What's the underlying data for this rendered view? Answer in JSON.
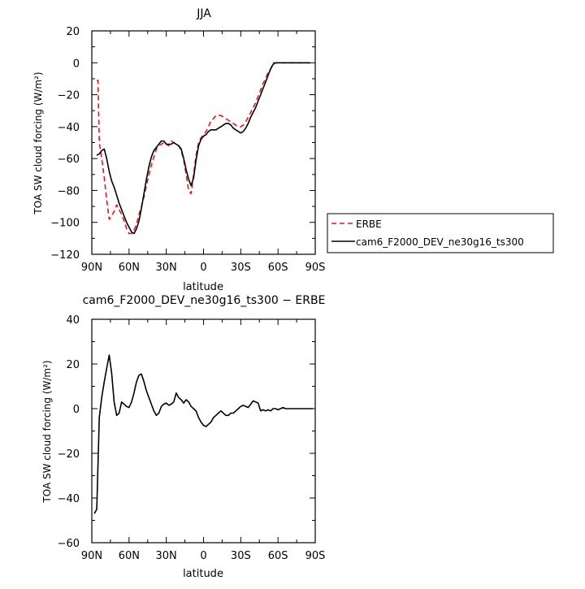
{
  "chart_data": [
    {
      "type": "line",
      "title": "JJA",
      "xlabel": "latitude",
      "ylabel": "TOA SW cloud forcing (W/m²)",
      "xlim": [
        90,
        -90
      ],
      "ylim": [
        -120,
        20
      ],
      "xticks": [
        90,
        60,
        30,
        0,
        -30,
        -60,
        -90
      ],
      "xtick_labels": [
        "90N",
        "60N",
        "30N",
        "0",
        "30S",
        "60S",
        "90S"
      ],
      "yticks": [
        -120,
        -100,
        -80,
        -60,
        -40,
        -20,
        0,
        20
      ],
      "ytick_labels": [
        "−120",
        "−100",
        "−80",
        "−60",
        "−40",
        "−20",
        "0",
        "20"
      ],
      "legend_position": "right",
      "series": [
        {
          "name": "ERBE",
          "color": "#e8131b",
          "dash": "dashed",
          "x": [
            86,
            85,
            84,
            82,
            80,
            78,
            76,
            74,
            72,
            70,
            68,
            66,
            64,
            62,
            60,
            58,
            56,
            54,
            52,
            50,
            48,
            46,
            44,
            42,
            40,
            38,
            36,
            34,
            32,
            30,
            28,
            26,
            24,
            22,
            20,
            18,
            16,
            14,
            12,
            10,
            8,
            6,
            4,
            2,
            0,
            -2,
            -4,
            -6,
            -8,
            -10,
            -12,
            -14,
            -16,
            -18,
            -20,
            -22,
            -24,
            -26,
            -28,
            -30,
            -32,
            -34,
            -36,
            -38,
            -40,
            -42,
            -44,
            -46,
            -48,
            -50,
            -52,
            -54,
            -56,
            -58,
            -60,
            -62,
            -64,
            -66,
            -68,
            -70,
            -72,
            -74,
            -76,
            -78,
            -80,
            -82,
            -84,
            -86
          ],
          "y": [
            -11,
            -11,
            -50,
            -60,
            -72,
            -86,
            -98,
            -96,
            -93,
            -89,
            -92,
            -95,
            -99,
            -104,
            -107,
            -107,
            -105,
            -101,
            -95,
            -90,
            -84,
            -77,
            -70,
            -64,
            -59,
            -54,
            -52,
            -51,
            -50,
            -51,
            -52,
            -49,
            -50,
            -51,
            -52,
            -55,
            -61,
            -70,
            -80,
            -82,
            -70,
            -58,
            -50,
            -47,
            -45,
            -43,
            -40,
            -36,
            -35,
            -33,
            -33,
            -33,
            -34,
            -35,
            -36,
            -37,
            -38,
            -39,
            -40,
            -40,
            -39,
            -37,
            -34,
            -31,
            -28,
            -25,
            -21,
            -17,
            -13,
            -10,
            -6,
            -4,
            0,
            0,
            0,
            0,
            0,
            0,
            0,
            0,
            0,
            0,
            0,
            0,
            0,
            0,
            0,
            0
          ]
        },
        {
          "name": "cam6_F2000_DEV_ne30g16_ts300",
          "color": "#000000",
          "dash": "solid",
          "x": [
            86,
            84,
            82,
            80,
            78,
            76,
            74,
            72,
            70,
            68,
            66,
            64,
            62,
            60,
            58,
            56,
            54,
            52,
            50,
            48,
            46,
            44,
            42,
            40,
            38,
            36,
            34,
            32,
            30,
            28,
            26,
            24,
            22,
            20,
            18,
            16,
            14,
            12,
            10,
            8,
            6,
            4,
            2,
            0,
            -2,
            -4,
            -6,
            -8,
            -10,
            -12,
            -14,
            -16,
            -18,
            -20,
            -22,
            -24,
            -26,
            -28,
            -30,
            -32,
            -34,
            -36,
            -38,
            -40,
            -42,
            -44,
            -46,
            -48,
            -50,
            -52,
            -54,
            -56,
            -58,
            -60,
            -62,
            -64,
            -66,
            -68,
            -70,
            -72,
            -74,
            -76,
            -78,
            -80,
            -82,
            -84,
            -86
          ],
          "y": [
            -58,
            -57,
            -55,
            -54,
            -60,
            -68,
            -74,
            -78,
            -83,
            -88,
            -92,
            -96,
            -100,
            -103,
            -106,
            -107,
            -104,
            -99,
            -91,
            -82,
            -73,
            -65,
            -59,
            -55,
            -53,
            -51,
            -49,
            -49,
            -51,
            -51,
            -51,
            -50,
            -51,
            -52,
            -54,
            -60,
            -67,
            -73,
            -77,
            -72,
            -61,
            -52,
            -48,
            -46,
            -45,
            -43,
            -42,
            -42,
            -42,
            -41,
            -40,
            -39,
            -38,
            -38,
            -39,
            -41,
            -42,
            -43,
            -44,
            -43,
            -41,
            -38,
            -34,
            -31,
            -28,
            -24,
            -20,
            -16,
            -12,
            -8,
            -4,
            -1,
            0,
            0,
            0,
            0,
            0,
            0,
            0,
            0,
            0,
            0,
            0,
            0,
            0,
            0,
            0
          ]
        }
      ]
    },
    {
      "type": "line",
      "title": "cam6_F2000_DEV_ne30g16_ts300 − ERBE",
      "xlabel": "latitude",
      "ylabel": "TOA SW cloud forcing (W/m²)",
      "xlim": [
        90,
        -90
      ],
      "ylim": [
        -60,
        40
      ],
      "xticks": [
        90,
        60,
        30,
        0,
        -30,
        -60,
        -90
      ],
      "xtick_labels": [
        "90N",
        "60N",
        "30N",
        "0",
        "30S",
        "60S",
        "90S"
      ],
      "yticks": [
        -60,
        -40,
        -20,
        0,
        20,
        40
      ],
      "ytick_labels": [
        "−60",
        "−40",
        "−20",
        "0",
        "20",
        "40"
      ],
      "series": [
        {
          "color": "#000000",
          "dash": "solid",
          "x": [
            88,
            86,
            84,
            82,
            80,
            78,
            76,
            74,
            72,
            70,
            68,
            66,
            64,
            62,
            60,
            58,
            56,
            54,
            52,
            50,
            48,
            46,
            44,
            42,
            40,
            38,
            36,
            34,
            32,
            30,
            28,
            26,
            24,
            22,
            20,
            18,
            16,
            14,
            12,
            10,
            8,
            6,
            4,
            2,
            0,
            -2,
            -4,
            -6,
            -8,
            -10,
            -12,
            -14,
            -16,
            -18,
            -20,
            -22,
            -24,
            -26,
            -28,
            -30,
            -32,
            -34,
            -36,
            -38,
            -40,
            -42,
            -44,
            -46,
            -48,
            -50,
            -52,
            -54,
            -56,
            -58,
            -60,
            -62,
            -64,
            -66,
            -68,
            -70,
            -72,
            -74,
            -76,
            -78,
            -80,
            -82,
            -84,
            -86,
            -88
          ],
          "y": [
            -47,
            -45,
            -4,
            5,
            12,
            18,
            24,
            16,
            3,
            -3,
            -2,
            3,
            2,
            1,
            0.5,
            3,
            7,
            12,
            15,
            15.5,
            12,
            8,
            5,
            2,
            -1,
            -3,
            -2,
            1,
            2,
            2.5,
            1.5,
            2,
            3,
            7,
            5,
            4,
            2.5,
            4,
            3,
            1,
            0,
            -1,
            -4,
            -6,
            -7.5,
            -8,
            -7,
            -6,
            -4,
            -3,
            -2,
            -1,
            -2,
            -3,
            -3,
            -2,
            -2,
            -1,
            0,
            1,
            1.5,
            1,
            0.5,
            2,
            3.5,
            3,
            2.5,
            -1,
            -0.5,
            -1,
            -0.5,
            -1,
            0,
            0,
            -0.5,
            0,
            0.5,
            0,
            0,
            0,
            0,
            0,
            0,
            0,
            0,
            0,
            0,
            0,
            0
          ]
        }
      ]
    }
  ]
}
